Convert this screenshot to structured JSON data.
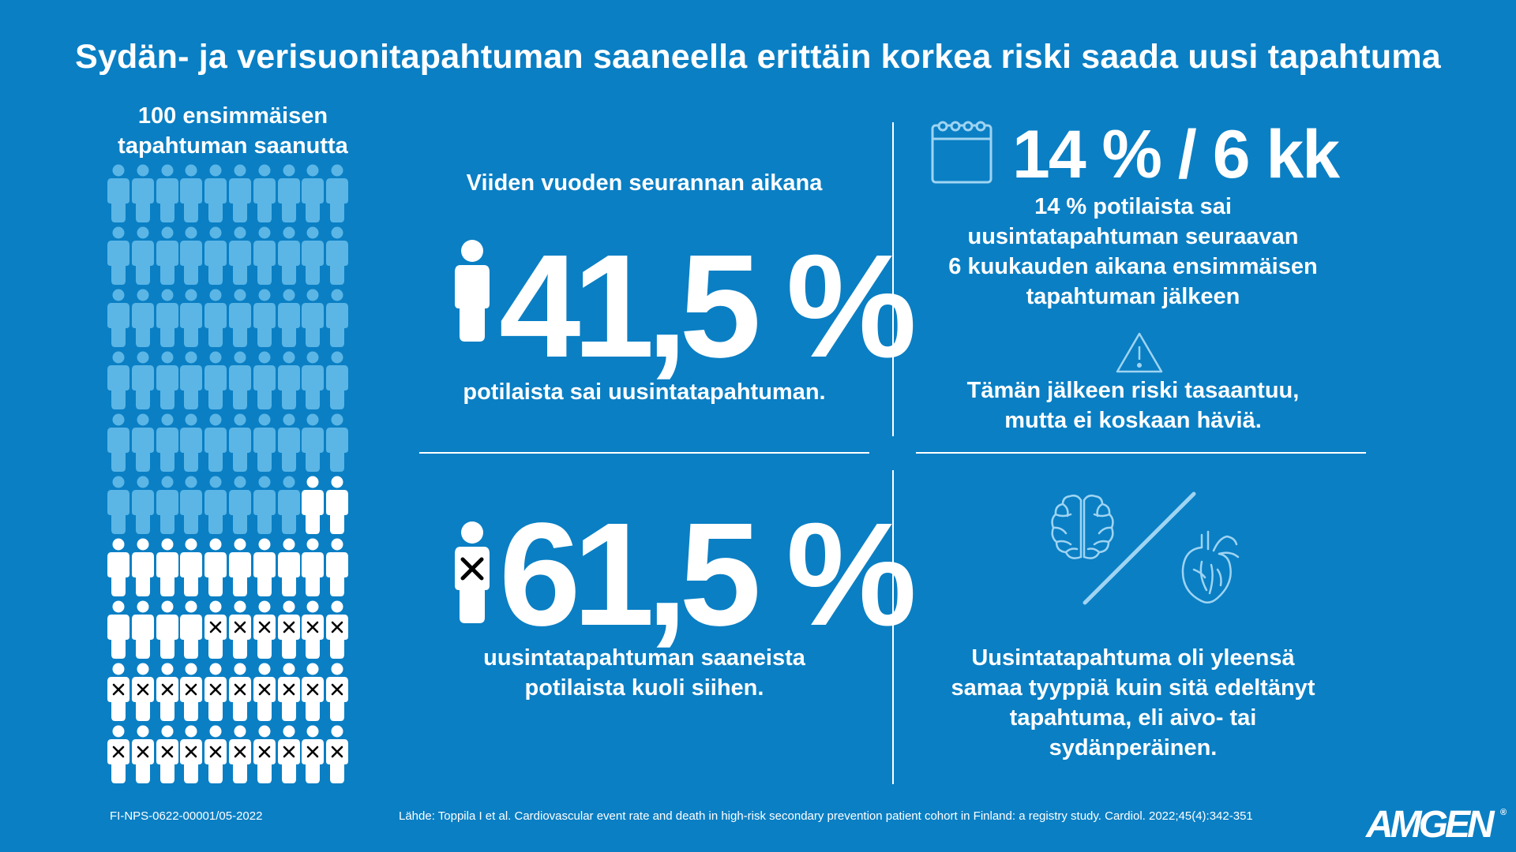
{
  "title": "Sydän- ja verisuonitapahtuman saaneella erittäin korkea riski saada uusi tapahtuma",
  "grid": {
    "caption_line1": "100 ensimmäisen",
    "caption_line2": "tapahtuman saanutta",
    "total": 100,
    "recurrent_count": 42,
    "died_count": 26,
    "colors": {
      "base": "#5bb6e6",
      "recurrent": "#ffffff",
      "died_mark": "#000000"
    }
  },
  "panel_top_left": {
    "heading": "Viiden vuoden seurannan aikana",
    "value": "41,5 %",
    "description": "potilaista sai uusintatapahtuman.",
    "icon": "person-icon"
  },
  "panel_bottom_left": {
    "value": "61,5 %",
    "description_line1": "uusintatapahtuman saaneista",
    "description_line2": "potilaista kuoli siihen.",
    "icon": "person-crossed-icon"
  },
  "panel_top_right": {
    "stat": "14 % / 6 kk",
    "description_lines": [
      "14 % potilaista sai",
      "uusintatapahtuman seuraavan",
      "6 kuukauden aikana ensimmäisen",
      "tapahtuman jälkeen"
    ],
    "warning_lines": [
      "Tämän jälkeen riski tasaantuu,",
      "mutta ei koskaan häviä."
    ],
    "icons": [
      "calendar-icon",
      "warning-icon"
    ]
  },
  "panel_bottom_right": {
    "description_lines": [
      "Uusintatapahtuma oli yleensä",
      "samaa tyyppiä kuin sitä edeltänyt",
      "tapahtuma, eli aivo- tai",
      "sydänperäinen."
    ],
    "icons": [
      "brain-icon",
      "heart-icon"
    ]
  },
  "footer": {
    "code": "FI-NPS-0622-00001/05-2022",
    "source": "Lähde: Toppila I et al. Cardiovascular event rate and death in high-risk secondary prevention patient cohort in Finland: a registry study. Cardiol. 2022;45(4):342-351",
    "logo": "AMGEN",
    "logo_mark": "®"
  },
  "colors": {
    "background": "#0a7fc4",
    "text": "#ffffff",
    "accent_light": "#5bb6e6"
  }
}
